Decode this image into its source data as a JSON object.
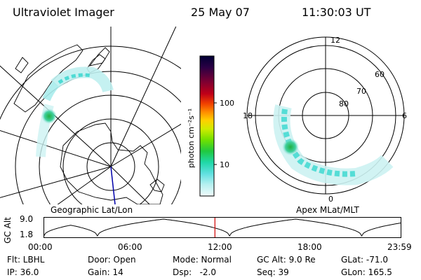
{
  "header": {
    "title": "Ultraviolet Imager",
    "date": "25 May 07",
    "time": "11:30:03 UT"
  },
  "left_panel": {
    "caption": "Geographic Lat/Lon"
  },
  "right_panel": {
    "caption": "Apex MLat/MLT",
    "mlt_labels": {
      "top": "12",
      "left": "18",
      "right": "6",
      "bottom": "0"
    },
    "lat_labels": [
      "60",
      "70",
      "80"
    ]
  },
  "colorbar": {
    "label": "photon cm⁻²s⁻¹",
    "scale": "log",
    "ticks": [
      "100",
      "10"
    ],
    "colors": [
      "#000033",
      "#2a0044",
      "#7a0033",
      "#b0001a",
      "#e02000",
      "#ff7a00",
      "#ffd000",
      "#d8ec00",
      "#80e000",
      "#20d040",
      "#20d8a0",
      "#60e0e0",
      "#b0f0f0",
      "#ecfafa"
    ]
  },
  "timeline": {
    "ylabel": "GC Alt",
    "ytick_top": "9.0",
    "ytick_bottom": "1.8",
    "ticks": [
      "00:00",
      "06:00",
      "12:00",
      "18:00",
      "23:59"
    ],
    "current_fraction": 0.479
  },
  "footer": {
    "row1": [
      "Flt: LBHL",
      "Door: Open",
      "Mode: Normal",
      "GC Alt: 9.0 Re",
      "GLat: -71.0"
    ],
    "row2": [
      "IP: 36.0",
      "Gain: 14",
      "Dsp:   -2.0",
      "Seq: 39",
      "GLon: 165.5"
    ]
  },
  "colors": {
    "aurora_cyan": "#40d8d0",
    "aurora_green": "#20c040",
    "marker_red": "#d00000",
    "meridian_blue": "#0000aa"
  }
}
